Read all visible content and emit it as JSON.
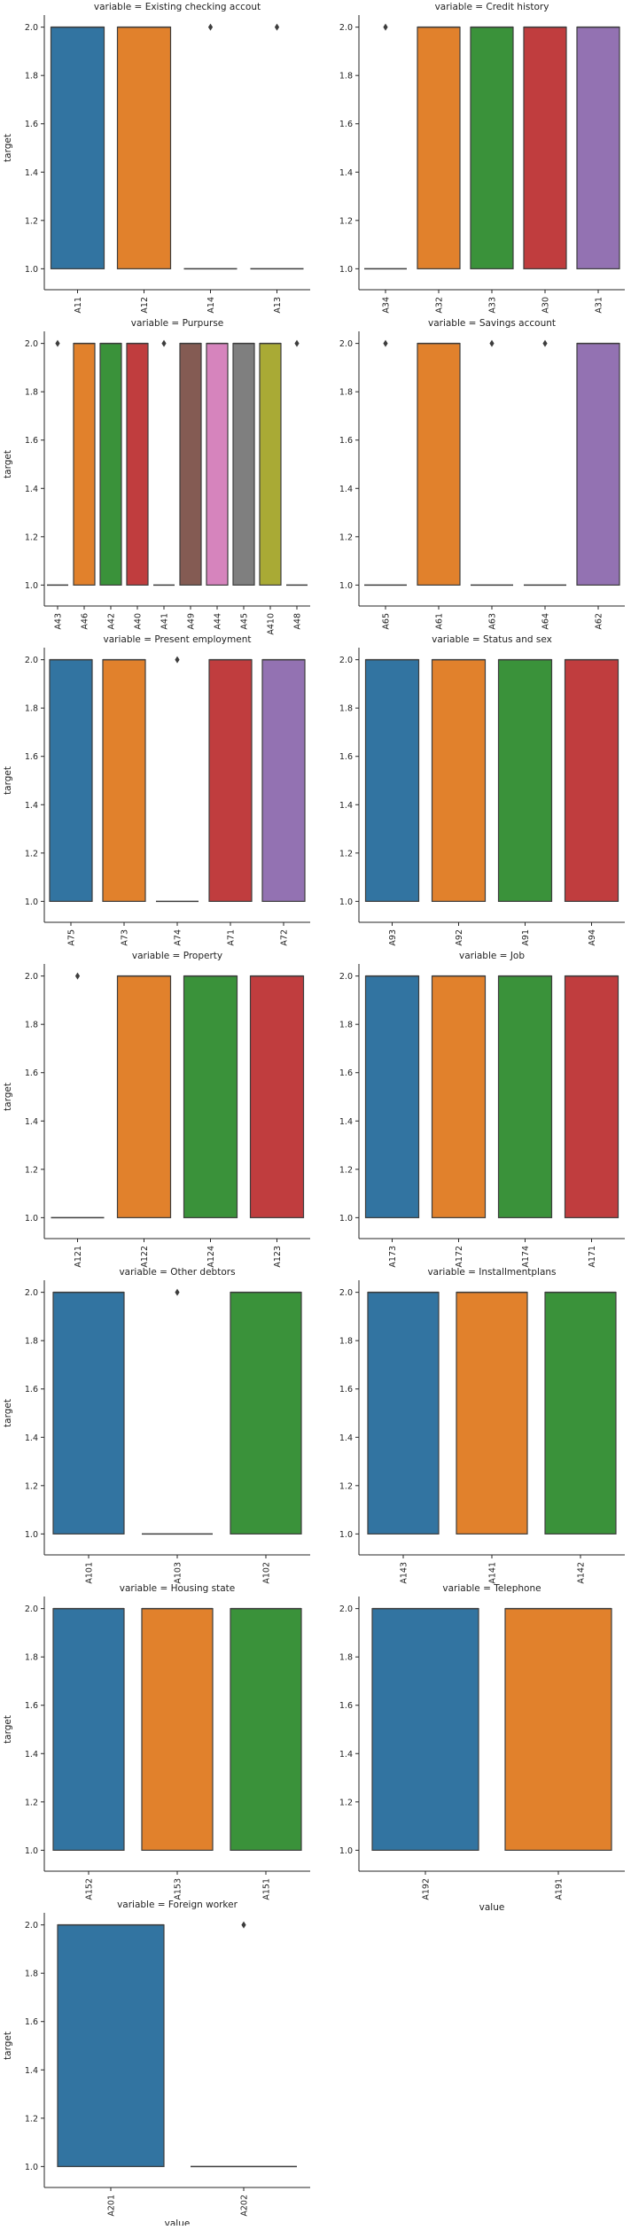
{
  "chart_data": [
    {
      "type": "box",
      "title": "variable = Existing checking accout",
      "ylabel": "target",
      "xlabel": "",
      "ylim": [
        0.95,
        2.05
      ],
      "yticks": [
        "1.0",
        "1.2",
        "1.4",
        "1.6",
        "1.8",
        "2.0"
      ],
      "categories": [
        "A11",
        "A12",
        "A14",
        "A13"
      ],
      "boxes": [
        {
          "category": "A11",
          "q1": 1,
          "median": 2,
          "q3": 2,
          "whisker_low": 1,
          "whisker_high": 2,
          "outliers": [],
          "color": "#3274a1"
        },
        {
          "category": "A12",
          "q1": 1,
          "median": 2,
          "q3": 2,
          "whisker_low": 1,
          "whisker_high": 2,
          "outliers": [],
          "color": "#e1812c"
        },
        {
          "category": "A14",
          "q1": 1,
          "median": 1,
          "q3": 1,
          "whisker_low": 1,
          "whisker_high": 1,
          "outliers": [
            2
          ],
          "color": "#3a923a"
        },
        {
          "category": "A13",
          "q1": 1,
          "median": 1,
          "q3": 1,
          "whisker_low": 1,
          "whisker_high": 1,
          "outliers": [
            2
          ],
          "color": "#c03d3e"
        }
      ]
    },
    {
      "type": "box",
      "title": "variable = Credit history",
      "ylabel": "",
      "xlabel": "",
      "ylim": [
        0.95,
        2.05
      ],
      "yticks": [
        "1.0",
        "1.2",
        "1.4",
        "1.6",
        "1.8",
        "2.0"
      ],
      "categories": [
        "A34",
        "A32",
        "A33",
        "A30",
        "A31"
      ],
      "boxes": [
        {
          "category": "A34",
          "q1": 1,
          "median": 1,
          "q3": 1,
          "whisker_low": 1,
          "whisker_high": 1,
          "outliers": [
            2
          ],
          "color": "#3274a1"
        },
        {
          "category": "A32",
          "q1": 1,
          "median": 2,
          "q3": 2,
          "whisker_low": 1,
          "whisker_high": 2,
          "outliers": [],
          "color": "#e1812c"
        },
        {
          "category": "A33",
          "q1": 1,
          "median": 2,
          "q3": 2,
          "whisker_low": 1,
          "whisker_high": 2,
          "outliers": [],
          "color": "#3a923a"
        },
        {
          "category": "A30",
          "q1": 1,
          "median": 2,
          "q3": 2,
          "whisker_low": 1,
          "whisker_high": 2,
          "outliers": [],
          "color": "#c03d3e"
        },
        {
          "category": "A31",
          "q1": 1,
          "median": 2,
          "q3": 2,
          "whisker_low": 1,
          "whisker_high": 2,
          "outliers": [],
          "color": "#9372b2"
        }
      ]
    },
    {
      "type": "box",
      "title": "variable = Purpurse",
      "ylabel": "target",
      "xlabel": "",
      "ylim": [
        0.95,
        2.05
      ],
      "yticks": [
        "1.0",
        "1.2",
        "1.4",
        "1.6",
        "1.8",
        "2.0"
      ],
      "categories": [
        "A43",
        "A46",
        "A42",
        "A40",
        "A41",
        "A49",
        "A44",
        "A45",
        "A410",
        "A48"
      ],
      "boxes": [
        {
          "category": "A43",
          "q1": 1,
          "median": 1,
          "q3": 1,
          "whisker_low": 1,
          "whisker_high": 1,
          "outliers": [
            2
          ],
          "color": "#3274a1"
        },
        {
          "category": "A46",
          "q1": 1,
          "median": 2,
          "q3": 2,
          "whisker_low": 1,
          "whisker_high": 2,
          "outliers": [],
          "color": "#e1812c"
        },
        {
          "category": "A42",
          "q1": 1,
          "median": 2,
          "q3": 2,
          "whisker_low": 1,
          "whisker_high": 2,
          "outliers": [],
          "color": "#3a923a"
        },
        {
          "category": "A40",
          "q1": 1,
          "median": 2,
          "q3": 2,
          "whisker_low": 1,
          "whisker_high": 2,
          "outliers": [],
          "color": "#c03d3e"
        },
        {
          "category": "A41",
          "q1": 1,
          "median": 1,
          "q3": 1,
          "whisker_low": 1,
          "whisker_high": 1,
          "outliers": [
            2
          ],
          "color": "#9372b2"
        },
        {
          "category": "A49",
          "q1": 1,
          "median": 2,
          "q3": 2,
          "whisker_low": 1,
          "whisker_high": 2,
          "outliers": [],
          "color": "#845b53"
        },
        {
          "category": "A44",
          "q1": 1,
          "median": 2,
          "q3": 2,
          "whisker_low": 1,
          "whisker_high": 2,
          "outliers": [],
          "color": "#d684bd"
        },
        {
          "category": "A45",
          "q1": 1,
          "median": 2,
          "q3": 2,
          "whisker_low": 1,
          "whisker_high": 2,
          "outliers": [],
          "color": "#7f7f7f"
        },
        {
          "category": "A410",
          "q1": 1,
          "median": 2,
          "q3": 2,
          "whisker_low": 1,
          "whisker_high": 2,
          "outliers": [],
          "color": "#a9aa35"
        },
        {
          "category": "A48",
          "q1": 1,
          "median": 1,
          "q3": 1,
          "whisker_low": 1,
          "whisker_high": 1,
          "outliers": [
            2
          ],
          "color": "#2ebece"
        }
      ]
    },
    {
      "type": "box",
      "title": "variable = Savings account",
      "ylabel": "",
      "xlabel": "",
      "ylim": [
        0.95,
        2.05
      ],
      "yticks": [
        "1.0",
        "1.2",
        "1.4",
        "1.6",
        "1.8",
        "2.0"
      ],
      "categories": [
        "A65",
        "A61",
        "A63",
        "A64",
        "A62"
      ],
      "boxes": [
        {
          "category": "A65",
          "q1": 1,
          "median": 1,
          "q3": 1,
          "whisker_low": 1,
          "whisker_high": 1,
          "outliers": [
            2
          ],
          "color": "#3274a1"
        },
        {
          "category": "A61",
          "q1": 1,
          "median": 2,
          "q3": 2,
          "whisker_low": 1,
          "whisker_high": 2,
          "outliers": [],
          "color": "#e1812c"
        },
        {
          "category": "A63",
          "q1": 1,
          "median": 1,
          "q3": 1,
          "whisker_low": 1,
          "whisker_high": 1,
          "outliers": [
            2
          ],
          "color": "#3a923a"
        },
        {
          "category": "A64",
          "q1": 1,
          "median": 1,
          "q3": 1,
          "whisker_low": 1,
          "whisker_high": 1,
          "outliers": [
            2
          ],
          "color": "#c03d3e"
        },
        {
          "category": "A62",
          "q1": 1,
          "median": 2,
          "q3": 2,
          "whisker_low": 1,
          "whisker_high": 2,
          "outliers": [],
          "color": "#9372b2"
        }
      ]
    },
    {
      "type": "box",
      "title": "variable = Present employment",
      "ylabel": "target",
      "xlabel": "",
      "ylim": [
        0.95,
        2.05
      ],
      "yticks": [
        "1.0",
        "1.2",
        "1.4",
        "1.6",
        "1.8",
        "2.0"
      ],
      "categories": [
        "A75",
        "A73",
        "A74",
        "A71",
        "A72"
      ],
      "boxes": [
        {
          "category": "A75",
          "q1": 1,
          "median": 2,
          "q3": 2,
          "whisker_low": 1,
          "whisker_high": 2,
          "outliers": [],
          "color": "#3274a1"
        },
        {
          "category": "A73",
          "q1": 1,
          "median": 2,
          "q3": 2,
          "whisker_low": 1,
          "whisker_high": 2,
          "outliers": [],
          "color": "#e1812c"
        },
        {
          "category": "A74",
          "q1": 1,
          "median": 1,
          "q3": 1,
          "whisker_low": 1,
          "whisker_high": 1,
          "outliers": [
            2
          ],
          "color": "#3a923a"
        },
        {
          "category": "A71",
          "q1": 1,
          "median": 2,
          "q3": 2,
          "whisker_low": 1,
          "whisker_high": 2,
          "outliers": [],
          "color": "#c03d3e"
        },
        {
          "category": "A72",
          "q1": 1,
          "median": 2,
          "q3": 2,
          "whisker_low": 1,
          "whisker_high": 2,
          "outliers": [],
          "color": "#9372b2"
        }
      ]
    },
    {
      "type": "box",
      "title": "variable = Status and sex",
      "ylabel": "",
      "xlabel": "",
      "ylim": [
        0.95,
        2.05
      ],
      "yticks": [
        "1.0",
        "1.2",
        "1.4",
        "1.6",
        "1.8",
        "2.0"
      ],
      "categories": [
        "A93",
        "A92",
        "A91",
        "A94"
      ],
      "boxes": [
        {
          "category": "A93",
          "q1": 1,
          "median": 2,
          "q3": 2,
          "whisker_low": 1,
          "whisker_high": 2,
          "outliers": [],
          "color": "#3274a1"
        },
        {
          "category": "A92",
          "q1": 1,
          "median": 2,
          "q3": 2,
          "whisker_low": 1,
          "whisker_high": 2,
          "outliers": [],
          "color": "#e1812c"
        },
        {
          "category": "A91",
          "q1": 1,
          "median": 2,
          "q3": 2,
          "whisker_low": 1,
          "whisker_high": 2,
          "outliers": [],
          "color": "#3a923a"
        },
        {
          "category": "A94",
          "q1": 1,
          "median": 2,
          "q3": 2,
          "whisker_low": 1,
          "whisker_high": 2,
          "outliers": [],
          "color": "#c03d3e"
        }
      ]
    },
    {
      "type": "box",
      "title": "variable = Property",
      "ylabel": "target",
      "xlabel": "",
      "ylim": [
        0.95,
        2.05
      ],
      "yticks": [
        "1.0",
        "1.2",
        "1.4",
        "1.6",
        "1.8",
        "2.0"
      ],
      "categories": [
        "A121",
        "A122",
        "A124",
        "A123"
      ],
      "boxes": [
        {
          "category": "A121",
          "q1": 1,
          "median": 1,
          "q3": 1,
          "whisker_low": 1,
          "whisker_high": 1,
          "outliers": [
            2
          ],
          "color": "#3274a1"
        },
        {
          "category": "A122",
          "q1": 1,
          "median": 2,
          "q3": 2,
          "whisker_low": 1,
          "whisker_high": 2,
          "outliers": [],
          "color": "#e1812c"
        },
        {
          "category": "A124",
          "q1": 1,
          "median": 2,
          "q3": 2,
          "whisker_low": 1,
          "whisker_high": 2,
          "outliers": [],
          "color": "#3a923a"
        },
        {
          "category": "A123",
          "q1": 1,
          "median": 2,
          "q3": 2,
          "whisker_low": 1,
          "whisker_high": 2,
          "outliers": [],
          "color": "#c03d3e"
        }
      ]
    },
    {
      "type": "box",
      "title": "variable = Job",
      "ylabel": "",
      "xlabel": "",
      "ylim": [
        0.95,
        2.05
      ],
      "yticks": [
        "1.0",
        "1.2",
        "1.4",
        "1.6",
        "1.8",
        "2.0"
      ],
      "categories": [
        "A173",
        "A172",
        "A174",
        "A171"
      ],
      "boxes": [
        {
          "category": "A173",
          "q1": 1,
          "median": 2,
          "q3": 2,
          "whisker_low": 1,
          "whisker_high": 2,
          "outliers": [],
          "color": "#3274a1"
        },
        {
          "category": "A172",
          "q1": 1,
          "median": 2,
          "q3": 2,
          "whisker_low": 1,
          "whisker_high": 2,
          "outliers": [],
          "color": "#e1812c"
        },
        {
          "category": "A174",
          "q1": 1,
          "median": 2,
          "q3": 2,
          "whisker_low": 1,
          "whisker_high": 2,
          "outliers": [],
          "color": "#3a923a"
        },
        {
          "category": "A171",
          "q1": 1,
          "median": 2,
          "q3": 2,
          "whisker_low": 1,
          "whisker_high": 2,
          "outliers": [],
          "color": "#c03d3e"
        }
      ]
    },
    {
      "type": "box",
      "title": "variable = Other debtors",
      "ylabel": "target",
      "xlabel": "",
      "ylim": [
        0.95,
        2.05
      ],
      "yticks": [
        "1.0",
        "1.2",
        "1.4",
        "1.6",
        "1.8",
        "2.0"
      ],
      "categories": [
        "A101",
        "A103",
        "A102"
      ],
      "boxes": [
        {
          "category": "A101",
          "q1": 1,
          "median": 2,
          "q3": 2,
          "whisker_low": 1,
          "whisker_high": 2,
          "outliers": [],
          "color": "#3274a1"
        },
        {
          "category": "A103",
          "q1": 1,
          "median": 1,
          "q3": 1,
          "whisker_low": 1,
          "whisker_high": 1,
          "outliers": [
            2
          ],
          "color": "#e1812c"
        },
        {
          "category": "A102",
          "q1": 1,
          "median": 2,
          "q3": 2,
          "whisker_low": 1,
          "whisker_high": 2,
          "outliers": [],
          "color": "#3a923a"
        }
      ]
    },
    {
      "type": "box",
      "title": "variable = Installmentplans",
      "ylabel": "",
      "xlabel": "",
      "ylim": [
        0.95,
        2.05
      ],
      "yticks": [
        "1.0",
        "1.2",
        "1.4",
        "1.6",
        "1.8",
        "2.0"
      ],
      "categories": [
        "A143",
        "A141",
        "A142"
      ],
      "boxes": [
        {
          "category": "A143",
          "q1": 1,
          "median": 2,
          "q3": 2,
          "whisker_low": 1,
          "whisker_high": 2,
          "outliers": [],
          "color": "#3274a1"
        },
        {
          "category": "A141",
          "q1": 1,
          "median": 2,
          "q3": 2,
          "whisker_low": 1,
          "whisker_high": 2,
          "outliers": [],
          "color": "#e1812c"
        },
        {
          "category": "A142",
          "q1": 1,
          "median": 2,
          "q3": 2,
          "whisker_low": 1,
          "whisker_high": 2,
          "outliers": [],
          "color": "#3a923a"
        }
      ]
    },
    {
      "type": "box",
      "title": "variable = Housing state",
      "ylabel": "target",
      "xlabel": "",
      "ylim": [
        0.95,
        2.05
      ],
      "yticks": [
        "1.0",
        "1.2",
        "1.4",
        "1.6",
        "1.8",
        "2.0"
      ],
      "categories": [
        "A152",
        "A153",
        "A151"
      ],
      "boxes": [
        {
          "category": "A152",
          "q1": 1,
          "median": 2,
          "q3": 2,
          "whisker_low": 1,
          "whisker_high": 2,
          "outliers": [],
          "color": "#3274a1"
        },
        {
          "category": "A153",
          "q1": 1,
          "median": 2,
          "q3": 2,
          "whisker_low": 1,
          "whisker_high": 2,
          "outliers": [],
          "color": "#e1812c"
        },
        {
          "category": "A151",
          "q1": 1,
          "median": 2,
          "q3": 2,
          "whisker_low": 1,
          "whisker_high": 2,
          "outliers": [],
          "color": "#3a923a"
        }
      ]
    },
    {
      "type": "box",
      "title": "variable = Telephone",
      "ylabel": "",
      "xlabel": "value",
      "ylim": [
        0.95,
        2.05
      ],
      "yticks": [
        "1.0",
        "1.2",
        "1.4",
        "1.6",
        "1.8",
        "2.0"
      ],
      "categories": [
        "A192",
        "A191"
      ],
      "boxes": [
        {
          "category": "A192",
          "q1": 1,
          "median": 2,
          "q3": 2,
          "whisker_low": 1,
          "whisker_high": 2,
          "outliers": [],
          "color": "#3274a1"
        },
        {
          "category": "A191",
          "q1": 1,
          "median": 2,
          "q3": 2,
          "whisker_low": 1,
          "whisker_high": 2,
          "outliers": [],
          "color": "#e1812c"
        }
      ]
    },
    {
      "type": "box",
      "title": "variable = Foreign worker",
      "ylabel": "target",
      "xlabel": "value",
      "ylim": [
        0.95,
        2.05
      ],
      "yticks": [
        "1.0",
        "1.2",
        "1.4",
        "1.6",
        "1.8",
        "2.0"
      ],
      "categories": [
        "A201",
        "A202"
      ],
      "boxes": [
        {
          "category": "A201",
          "q1": 1,
          "median": 2,
          "q3": 2,
          "whisker_low": 1,
          "whisker_high": 2,
          "outliers": [],
          "color": "#3274a1"
        },
        {
          "category": "A202",
          "q1": 1,
          "median": 1,
          "q3": 1,
          "whisker_low": 1,
          "whisker_high": 1,
          "outliers": [
            2
          ],
          "color": "#e1812c"
        }
      ]
    }
  ]
}
